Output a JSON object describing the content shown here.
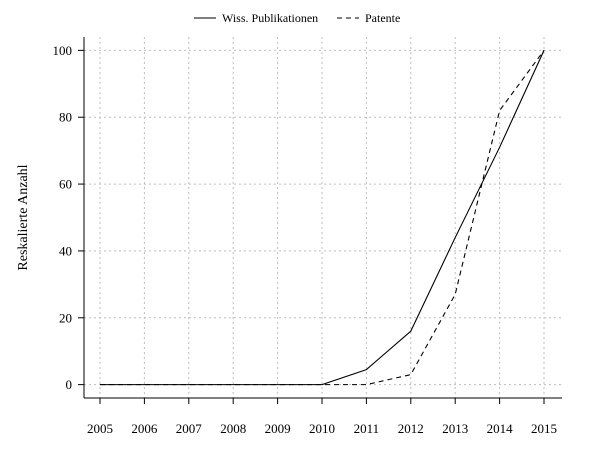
{
  "chart_data": {
    "type": "line",
    "title": "",
    "xlabel": "",
    "ylabel": "Reskalierte Anzahl",
    "x": [
      2005,
      2006,
      2007,
      2008,
      2009,
      2010,
      2011,
      2012,
      2013,
      2014,
      2015
    ],
    "x_tick_labels": [
      "2005",
      "2006",
      "2007",
      "2008",
      "2009",
      "2010",
      "2011",
      "2012",
      "2013",
      "2014",
      "2015"
    ],
    "y_ticks": [
      0,
      20,
      40,
      60,
      80,
      100
    ],
    "y_tick_labels": [
      "0",
      "20",
      "40",
      "60",
      "80",
      "100"
    ],
    "xlim": [
      2005,
      2015
    ],
    "ylim": [
      -4,
      104
    ],
    "grid": true,
    "legend_position": "top-center",
    "series": [
      {
        "name": "Wiss. Publikationen",
        "style": "solid",
        "color": "#000000",
        "values": [
          0,
          0,
          0,
          0,
          0,
          0,
          4.5,
          16,
          44,
          71,
          100
        ]
      },
      {
        "name": "Patente",
        "style": "dashed",
        "color": "#000000",
        "values": [
          0,
          0,
          0,
          0,
          0,
          0,
          0,
          3,
          27,
          82,
          100
        ]
      }
    ]
  }
}
